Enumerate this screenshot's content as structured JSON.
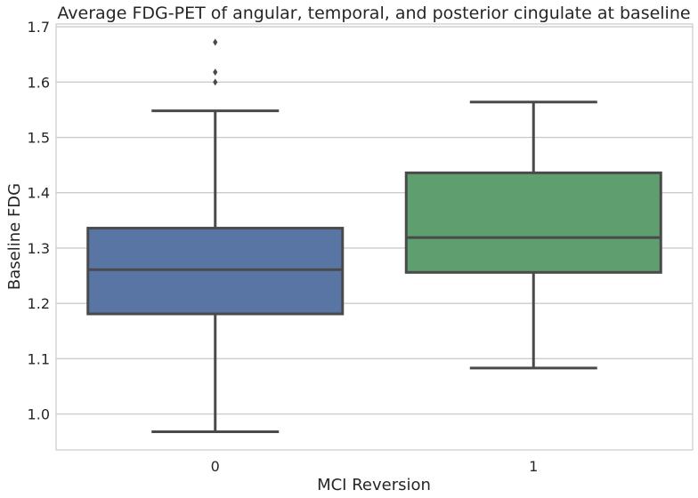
{
  "chart_data": {
    "type": "box",
    "title": "Average FDG-PET of angular, temporal, and posterior cingulate at baseline",
    "xlabel": "MCI Reversion",
    "ylabel": "Baseline FDG",
    "ylim": [
      0.935,
      1.705
    ],
    "yticks": [
      "1.0",
      "1.1",
      "1.2",
      "1.3",
      "1.4",
      "1.5",
      "1.6",
      "1.7"
    ],
    "grid": true,
    "categories": [
      "0",
      "1"
    ],
    "boxes": [
      {
        "category": "0",
        "whisker_low": 0.968,
        "q1": 1.181,
        "median": 1.261,
        "q3": 1.336,
        "whisker_high": 1.548,
        "outliers": [
          1.6,
          1.618,
          1.672
        ],
        "color": "#5875a4"
      },
      {
        "category": "1",
        "whisker_low": 1.083,
        "q1": 1.256,
        "median": 1.319,
        "q3": 1.436,
        "whisker_high": 1.564,
        "outliers": [],
        "color": "#5f9e6e"
      }
    ]
  }
}
